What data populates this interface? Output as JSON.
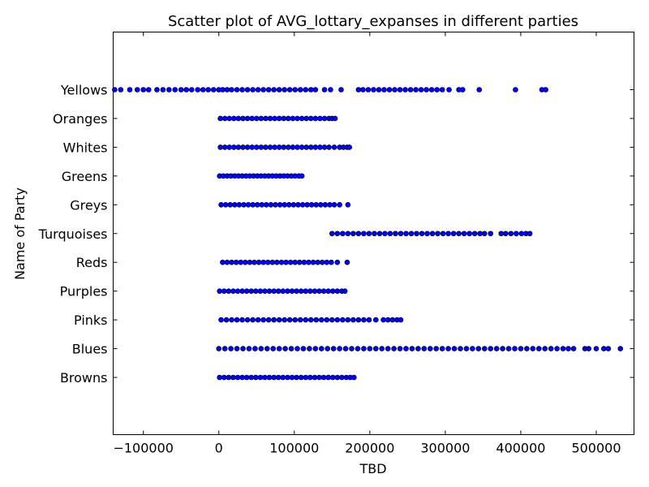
{
  "chart_data": {
    "type": "scatter",
    "title": "Scatter plot of AVG_lottary_expanses in different parties",
    "xlabel": "TBD",
    "ylabel": "Name of Party",
    "xlim": [
      -140000,
      550000
    ],
    "x_ticks": [
      -100000,
      0,
      100000,
      200000,
      300000,
      400000,
      500000
    ],
    "x_tick_labels": [
      "−100000",
      "0",
      "100000",
      "200000",
      "300000",
      "400000",
      "500000"
    ],
    "categories": [
      "Browns",
      "Blues",
      "Pinks",
      "Purples",
      "Reds",
      "Turquoises",
      "Greys",
      "Greens",
      "Whites",
      "Oranges",
      "Yellows"
    ],
    "marker_color": "#0000ff",
    "series": [
      {
        "category": "Yellows",
        "x": [
          -138000,
          -130000,
          -118000,
          -108000,
          -100000,
          -93000,
          -82000,
          -74000,
          -66000,
          -58000,
          -50000,
          -43000,
          -36000,
          -28000,
          -21000,
          -14000,
          -7000,
          0,
          5000,
          11000,
          17000,
          24000,
          31000,
          38000,
          45000,
          52000,
          59000,
          66000,
          73000,
          80000,
          87000,
          94000,
          101000,
          108000,
          115000,
          122000,
          128000,
          140000,
          148000,
          162000,
          185000,
          191000,
          198000,
          205000,
          212000,
          219000,
          226000,
          233000,
          240000,
          247000,
          254000,
          261000,
          268000,
          275000,
          282000,
          289000,
          296000,
          305000,
          318000,
          323000,
          345000,
          393000,
          428000,
          433000
        ]
      },
      {
        "category": "Oranges",
        "x": [
          2000,
          8000,
          14000,
          20000,
          26000,
          32000,
          38000,
          44000,
          50000,
          56000,
          62000,
          68000,
          74000,
          80000,
          86000,
          92000,
          98000,
          104000,
          110000,
          116000,
          122000,
          128000,
          134000,
          140000,
          146000,
          150000,
          154000
        ]
      },
      {
        "category": "Whites",
        "x": [
          2000,
          8000,
          14000,
          20000,
          26000,
          32000,
          38000,
          44000,
          50000,
          56000,
          62000,
          68000,
          74000,
          80000,
          86000,
          92000,
          98000,
          104000,
          110000,
          116000,
          122000,
          128000,
          134000,
          140000,
          146000,
          153000,
          160000,
          165000,
          170000,
          173000
        ]
      },
      {
        "category": "Greens",
        "x": [
          1000,
          6000,
          11000,
          16000,
          21000,
          26000,
          31000,
          36000,
          41000,
          46000,
          51000,
          56000,
          61000,
          66000,
          71000,
          76000,
          81000,
          86000,
          91000,
          96000,
          101000,
          106000,
          110000
        ]
      },
      {
        "category": "Greys",
        "x": [
          3000,
          9000,
          15000,
          21000,
          27000,
          33000,
          39000,
          45000,
          51000,
          57000,
          63000,
          69000,
          75000,
          81000,
          87000,
          93000,
          99000,
          105000,
          111000,
          117000,
          123000,
          129000,
          135000,
          141000,
          147000,
          153000,
          160000,
          171000
        ]
      },
      {
        "category": "Turquoises",
        "x": [
          150000,
          157000,
          164000,
          171000,
          178000,
          185000,
          192000,
          199000,
          206000,
          213000,
          220000,
          227000,
          234000,
          241000,
          248000,
          255000,
          262000,
          269000,
          276000,
          283000,
          290000,
          297000,
          304000,
          311000,
          318000,
          325000,
          332000,
          339000,
          346000,
          352000,
          360000,
          374000,
          380000,
          387000,
          394000,
          401000,
          407000,
          412000
        ]
      },
      {
        "category": "Reds",
        "x": [
          5000,
          11000,
          17000,
          23000,
          29000,
          35000,
          41000,
          47000,
          53000,
          59000,
          65000,
          71000,
          77000,
          83000,
          89000,
          95000,
          101000,
          107000,
          113000,
          119000,
          125000,
          131000,
          137000,
          143000,
          149000,
          157000,
          170000
        ]
      },
      {
        "category": "Purples",
        "x": [
          1000,
          7000,
          13000,
          19000,
          25000,
          31000,
          37000,
          43000,
          49000,
          55000,
          61000,
          67000,
          73000,
          79000,
          85000,
          91000,
          97000,
          103000,
          109000,
          115000,
          121000,
          127000,
          133000,
          139000,
          145000,
          151000,
          157000,
          163000,
          167000
        ]
      },
      {
        "category": "Pinks",
        "x": [
          3000,
          10000,
          17000,
          24000,
          31000,
          38000,
          45000,
          52000,
          59000,
          66000,
          73000,
          80000,
          87000,
          94000,
          101000,
          108000,
          115000,
          122000,
          129000,
          136000,
          143000,
          150000,
          157000,
          164000,
          171000,
          178000,
          185000,
          192000,
          199000,
          208000,
          218000,
          224000,
          230000,
          236000,
          241000
        ]
      },
      {
        "category": "Blues",
        "x": [
          0,
          8000,
          16000,
          24000,
          32000,
          40000,
          48000,
          56000,
          64000,
          72000,
          80000,
          88000,
          96000,
          104000,
          112000,
          120000,
          128000,
          136000,
          144000,
          152000,
          160000,
          168000,
          176000,
          184000,
          192000,
          200000,
          208000,
          216000,
          224000,
          232000,
          240000,
          248000,
          256000,
          264000,
          272000,
          280000,
          288000,
          296000,
          304000,
          312000,
          320000,
          328000,
          336000,
          344000,
          352000,
          360000,
          368000,
          376000,
          384000,
          392000,
          400000,
          408000,
          416000,
          424000,
          432000,
          440000,
          448000,
          456000,
          463000,
          470000,
          485000,
          490000,
          500000,
          510000,
          516000,
          532000,
          551000
        ]
      },
      {
        "category": "Browns",
        "x": [
          1000,
          7000,
          13000,
          19000,
          25000,
          31000,
          37000,
          43000,
          49000,
          55000,
          61000,
          67000,
          73000,
          79000,
          85000,
          91000,
          97000,
          103000,
          109000,
          115000,
          121000,
          127000,
          133000,
          139000,
          145000,
          151000,
          157000,
          163000,
          169000,
          174000,
          179000
        ]
      }
    ]
  }
}
